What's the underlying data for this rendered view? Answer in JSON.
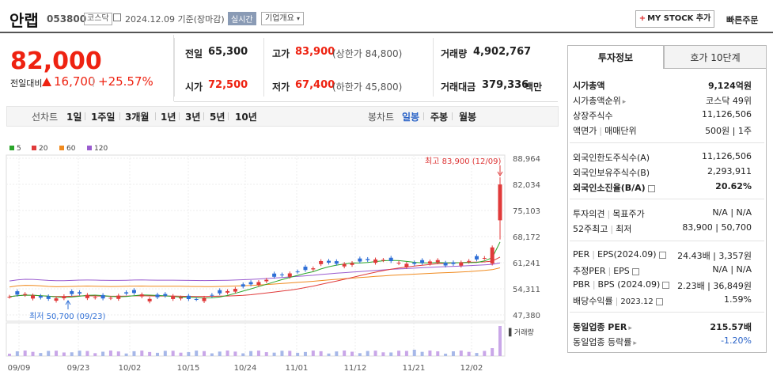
{
  "header": {
    "name": "안랩",
    "code": "053800",
    "market": "코스닥",
    "date": "2024.12.09 기준(장마감)",
    "realtime": "실시간",
    "overview": "기업개요",
    "mystock": "MY STOCK 추가",
    "quick_order": "빠른주문"
  },
  "price": {
    "current": "82,000",
    "change_label": "전일대비",
    "change_amount": "16,700",
    "change_pct": "+25.57%"
  },
  "quote": {
    "prev_label": "전일",
    "prev": "65,300",
    "high_label": "고가",
    "high": "83,900",
    "upper_limit": "(상한가 84,800)",
    "volume_label": "거래량",
    "volume": "4,902,767",
    "open_label": "시가",
    "open": "72,500",
    "low_label": "저가",
    "low": "67,400",
    "lower_limit": "(하한가 45,800)",
    "amount_label": "거래대금",
    "amount": "379,336",
    "amount_unit": "백만"
  },
  "period": {
    "line_label": "선차트",
    "line_tabs": [
      "1일",
      "1주일",
      "3개월",
      "1년",
      "3년",
      "5년",
      "10년"
    ],
    "candle_label": "봉차트",
    "candle_tabs": [
      "일봉",
      "주봉",
      "월봉"
    ],
    "active": "일봉"
  },
  "chart_data": {
    "type": "candlestick",
    "legend": [
      {
        "name": "5",
        "color": "#2aa52a"
      },
      {
        "name": "20",
        "color": "#e03a3a"
      },
      {
        "name": "60",
        "color": "#f08a1e"
      },
      {
        "name": "120",
        "color": "#9a5ccf"
      }
    ],
    "y_ticks": [
      "88,964",
      "82,034",
      "75,103",
      "68,172",
      "61,241",
      "54,311",
      "47,380"
    ],
    "ylim": [
      47380,
      88964
    ],
    "x_ticks": [
      "09/09",
      "09/23",
      "10/02",
      "10/15",
      "10/24",
      "11/01",
      "11/12",
      "11/21",
      "12/02"
    ],
    "high_annotation": "최고 83,900 (12/09)",
    "low_annotation": "최저 50,700 (09/23)",
    "volume_label": "거래량",
    "up_color": "#e03a3a",
    "down_color": "#2f6fd6"
  },
  "invest": {
    "tab1": "투자정보",
    "tab2": "호가 10단계",
    "market_cap_label": "시가총액",
    "market_cap": "9,124억원",
    "rank_label": "시가총액순위",
    "rank": "코스닥 49위",
    "shares_label": "상장주식수",
    "shares": "11,126,506",
    "par_label": "액면가",
    "unit_label": "매매단위",
    "par_unit": "500원 | 1주",
    "foreign_limit_label": "외국인한도주식수(A)",
    "foreign_limit": "11,126,506",
    "foreign_hold_label": "외국인보유주식수(B)",
    "foreign_hold": "2,293,911",
    "foreign_ratio_label": "외국인소진율(B/A)",
    "foreign_ratio": "20.62%",
    "opinion_label": "투자의견",
    "target_label": "목표주가",
    "opinion_target": "N/A | N/A",
    "w52_label": "52주최고",
    "w52_low_label": "최저",
    "w52": "83,900 | 50,700",
    "per_label": "PER",
    "eps_label": "EPS(2024.09)",
    "per_eps": "24.43배 | 3,357원",
    "est_per_label": "추정PER",
    "est_eps_label": "EPS",
    "est_per_eps": "N/A | N/A",
    "pbr_label": "PBR",
    "bps_label": "BPS (2024.09)",
    "pbr_bps": "2.23배 | 36,849원",
    "div_label": "배당수익률",
    "div_date": "2023.12",
    "div": "1.59%",
    "sector_per_label": "동일업종 PER",
    "sector_per": "215.57배",
    "sector_rate_label": "동일업종 등락률",
    "sector_rate": "-1.20%"
  }
}
